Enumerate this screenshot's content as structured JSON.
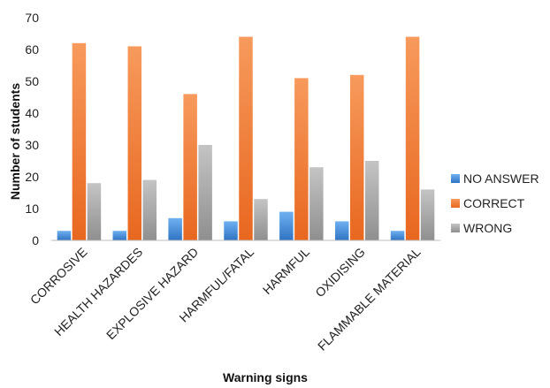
{
  "chart_data": {
    "type": "bar",
    "title": "",
    "xlabel": "Warning signs",
    "ylabel": "Number of students",
    "ylim": [
      0,
      70
    ],
    "yticks": [
      0,
      10,
      20,
      30,
      40,
      50,
      60,
      70
    ],
    "grid": false,
    "legend_position": "right",
    "categories": [
      "CORROSIVE",
      "HEALTH HAZARDES",
      "EXPLOSIVE HAZARD",
      "HARMFUL/FATAL",
      "HARMFUL",
      "OXIDISING",
      "FLAMMABLE MATERIAL"
    ],
    "series": [
      {
        "name": "NO ANSWER",
        "color": "#4a8fd9",
        "values": [
          3,
          3,
          7,
          6,
          9,
          6,
          3
        ]
      },
      {
        "name": "CORRECT",
        "color": "#f0803c",
        "values": [
          62,
          61,
          46,
          64,
          51,
          52,
          64
        ]
      },
      {
        "name": "WRONG",
        "color": "#a8a8a8",
        "values": [
          18,
          19,
          30,
          13,
          23,
          25,
          16
        ]
      }
    ]
  }
}
